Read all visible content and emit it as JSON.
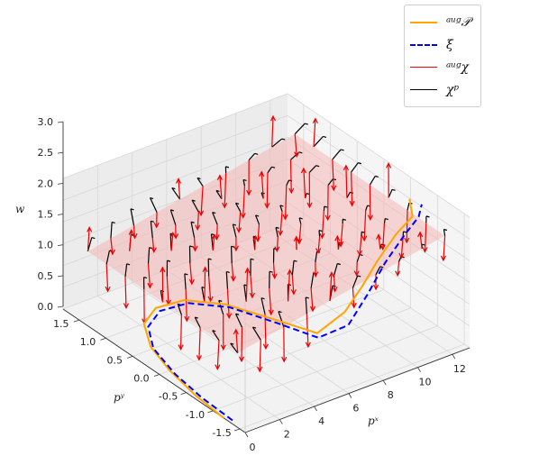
{
  "chart_data": {
    "type": "3d-vector-field",
    "axes": {
      "x": {
        "label": "p_x",
        "display_label": "pˣ",
        "lim": [
          0,
          13
        ],
        "ticks": [
          0,
          2,
          4,
          6,
          8,
          10,
          12
        ]
      },
      "y": {
        "label": "p_y",
        "display_label": "pʸ",
        "lim": [
          -1.6,
          1.8
        ],
        "ticks": [
          -1.5,
          -1.0,
          -0.5,
          0.0,
          0.5,
          1.0,
          1.5
        ]
      },
      "z": {
        "label": "w",
        "display_label": "w",
        "lim": [
          0,
          3
        ],
        "ticks": [
          0.0,
          0.5,
          1.0,
          1.5,
          2.0,
          2.5,
          3.0
        ]
      }
    },
    "grid": true,
    "legend_position": "top-right",
    "legend": [
      {
        "name": "augP",
        "display": "ᵃᵘᵍ𝒫",
        "color": "#ffa500",
        "style": "solid"
      },
      {
        "name": "xi",
        "display": "ξ",
        "color": "#0000ff",
        "style": "dashed"
      },
      {
        "name": "augChi",
        "display": "ᵃᵘᵍχ",
        "color": "#ff0000",
        "style": "solid"
      },
      {
        "name": "chi_p",
        "display": "χᵖ",
        "color": "#000000",
        "style": "solid"
      }
    ],
    "surface": {
      "name": "w-plane",
      "color": "#f4b6b6",
      "w_range": [
        1.5,
        2.4
      ]
    },
    "grid_field": {
      "nx": 10,
      "ny": 9,
      "x_range": [
        0.5,
        12.5
      ],
      "y_range": [
        -1.3,
        1.5
      ]
    },
    "curve_aug_P": [
      [
        0.0,
        -1.2,
        0.0
      ],
      [
        0.2,
        -0.6,
        0.0
      ],
      [
        0.6,
        0.0,
        0.0
      ],
      [
        1.2,
        0.55,
        0.0
      ],
      [
        2.2,
        1.0,
        0.0
      ],
      [
        3.5,
        1.2,
        0.0
      ],
      [
        5.0,
        1.15,
        0.0
      ],
      [
        6.3,
        0.8,
        0.0
      ],
      [
        7.3,
        0.2,
        0.0
      ],
      [
        7.9,
        -0.4,
        0.1
      ],
      [
        8.4,
        -0.75,
        0.8
      ],
      [
        8.8,
        -0.95,
        1.5
      ],
      [
        9.4,
        -1.05,
        2.1
      ],
      [
        10.3,
        -1.1,
        2.6
      ],
      [
        11.4,
        -1.05,
        2.8
      ],
      [
        12.0,
        -0.8,
        2.9
      ]
    ],
    "curve_xi": [
      [
        0.2,
        -1.3,
        0.0
      ],
      [
        0.3,
        -0.7,
        0.0
      ],
      [
        0.6,
        -0.1,
        0.0
      ],
      [
        1.2,
        0.5,
        0.0
      ],
      [
        2.2,
        0.92,
        0.0
      ],
      [
        3.5,
        1.12,
        0.0
      ],
      [
        5.0,
        1.07,
        0.0
      ],
      [
        6.3,
        0.72,
        0.0
      ],
      [
        7.2,
        0.12,
        0.0
      ],
      [
        7.8,
        -0.45,
        0.05
      ],
      [
        8.3,
        -0.85,
        0.6
      ],
      [
        8.8,
        -1.05,
        1.4
      ],
      [
        9.5,
        -1.15,
        2.1
      ],
      [
        10.5,
        -1.18,
        2.6
      ],
      [
        11.6,
        -1.1,
        2.8
      ],
      [
        12.4,
        -0.9,
        2.8
      ]
    ]
  }
}
